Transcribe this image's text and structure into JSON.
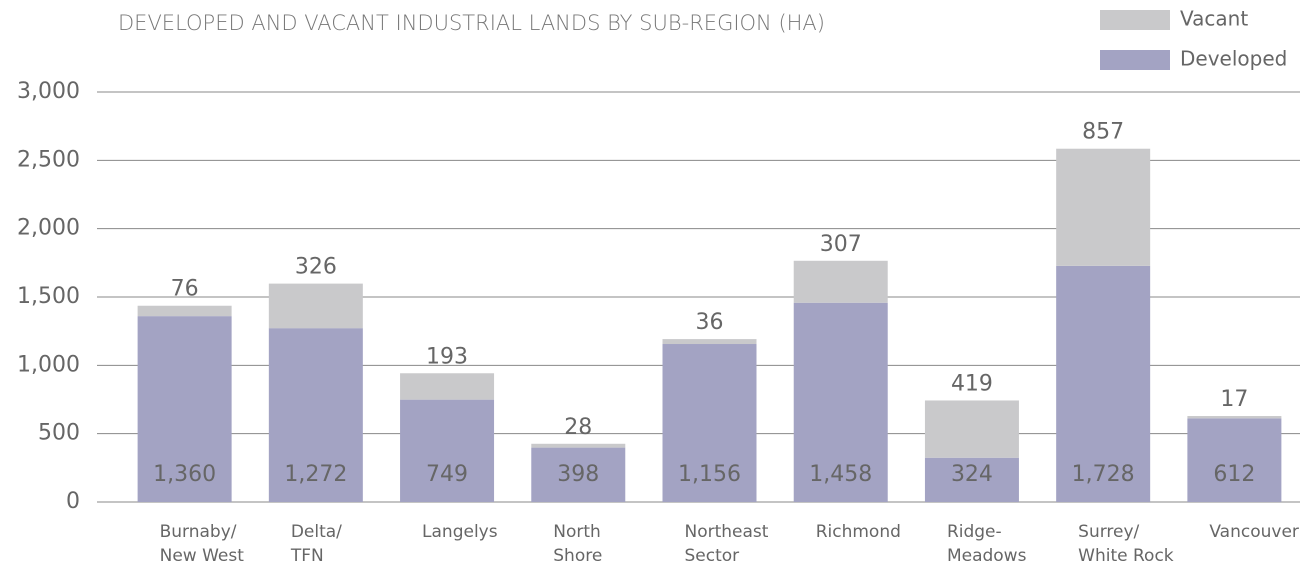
{
  "chart_data": {
    "type": "stacked_bar",
    "title": "DEVELOPED AND VACANT INDUSTRIAL LANDS BY SUB-REGION (HA)",
    "categories": [
      "Burnaby/\nNew West",
      "Delta/\nTFN",
      "Langelys",
      "North\nShore",
      "Northeast\nSector",
      "Richmond",
      "Ridge-\nMeadows",
      "Surrey/\nWhite Rock",
      "Vancouver"
    ],
    "series": [
      {
        "name": "Developed",
        "color": "#a3a3c3",
        "values": [
          1360,
          1272,
          749,
          398,
          1156,
          1458,
          324,
          1728,
          612
        ],
        "value_labels": [
          "1,360",
          "1,272",
          "749",
          "398",
          "1,156",
          "1,458",
          "324",
          "1,728",
          "612"
        ]
      },
      {
        "name": "Vacant",
        "color": "#c9c9cb",
        "values": [
          76,
          326,
          193,
          28,
          36,
          307,
          419,
          857,
          17
        ]
      }
    ],
    "ylim": [
      0,
      3000
    ],
    "yticks": [
      0,
      500,
      {
        "value": 1000,
        "label": "1,000"
      },
      {
        "value": 1500,
        "label": "1,500"
      },
      {
        "value": 2000,
        "label": "2,000"
      },
      {
        "value": 2500,
        "label": "2,500"
      },
      {
        "value": 3000,
        "label": "3,000"
      }
    ],
    "grid": true,
    "legend": "top-right"
  }
}
